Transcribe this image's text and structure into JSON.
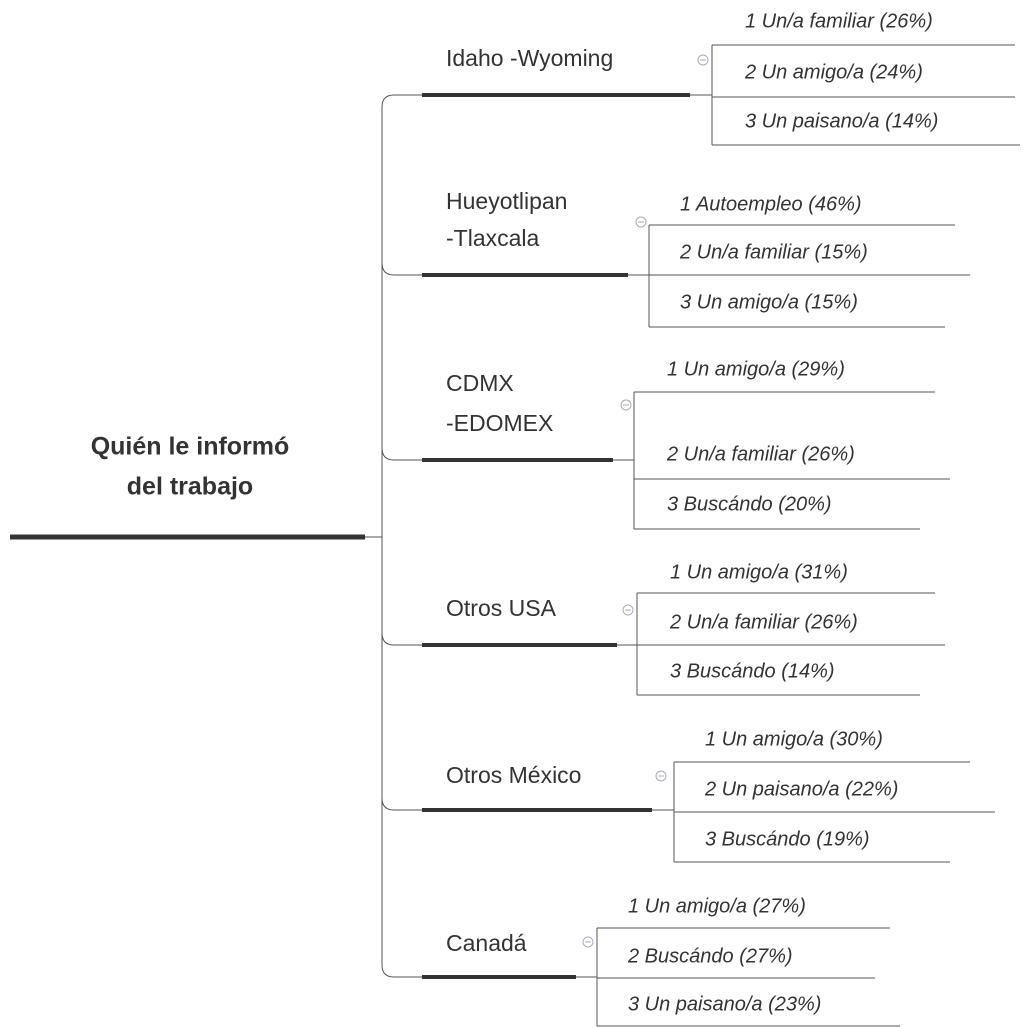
{
  "root": {
    "lines": [
      "Quién le informó",
      "del trabajo"
    ]
  },
  "branches": [
    {
      "lines": [
        "Idaho -Wyoming"
      ],
      "items": [
        "1  Un/a familiar (26%)",
        "2 Un amigo/a (24%)",
        "3 Un paisano/a (14%)"
      ]
    },
    {
      "lines": [
        "Hueyotlipan",
        "-Tlaxcala"
      ],
      "items": [
        "1 Autoempleo (46%)",
        "2  Un/a familiar (15%)",
        "3 Un amigo/a (15%)"
      ]
    },
    {
      "lines": [
        "CDMX",
        "-EDOMEX"
      ],
      "items": [
        "1 Un amigo/a (29%)",
        "2 Un/a familiar (26%)",
        "3 Buscándo (20%)"
      ]
    },
    {
      "lines": [
        "Otros USA"
      ],
      "items": [
        "1 Un amigo/a (31%)",
        "2 Un/a familiar (26%)",
        "3 Buscándo (14%)"
      ]
    },
    {
      "lines": [
        "Otros México"
      ],
      "items": [
        "1 Un amigo/a (30%)",
        "2 Un paisano/a (22%)",
        "3 Buscándo (19%)"
      ]
    },
    {
      "lines": [
        "Canadá"
      ],
      "items": [
        "1 Un amigo/a (27%)",
        "2 Buscándo (27%)",
        "3 Un paisano/a (23%)"
      ]
    }
  ]
}
